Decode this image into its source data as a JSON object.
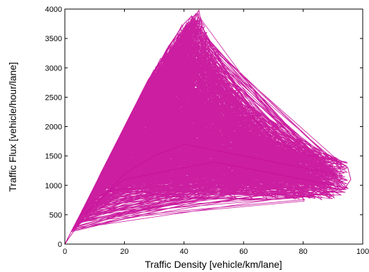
{
  "chart_data": {
    "type": "line",
    "title": "",
    "xlabel": "Traffic Density [vehicle/km/lane]",
    "ylabel": "Traffic Flux [vehicle/hour/lane]",
    "xlim": [
      0,
      100
    ],
    "ylim": [
      0,
      4000
    ],
    "x_ticks": [
      0,
      20,
      40,
      60,
      80,
      100
    ],
    "y_ticks": [
      0,
      500,
      1000,
      1500,
      2000,
      2500,
      3000,
      3500,
      4000
    ],
    "x_tick_labels": [
      "0",
      "20",
      "40",
      "60",
      "80",
      "100"
    ],
    "y_tick_labels": [
      "0",
      "500",
      "1000",
      "1500",
      "2000",
      "2500",
      "3000",
      "3500",
      "4000"
    ],
    "grid": false,
    "legend": "none",
    "series": [
      {
        "color": "#c8129b",
        "style": "dense zig-zag trajectory",
        "envelope": {
          "free_flow_upper": [
            [
              0,
              0
            ],
            [
              10,
              1000
            ],
            [
              20,
              2000
            ],
            [
              30,
              3000
            ],
            [
              40,
              3800
            ],
            [
              45,
              3980
            ]
          ],
          "free_flow_lower": [
            [
              0,
              0
            ],
            [
              5,
              450
            ],
            [
              10,
              800
            ],
            [
              15,
              900
            ],
            [
              20,
              1000
            ]
          ],
          "congested_upper": [
            [
              45,
              3980
            ],
            [
              50,
              3300
            ],
            [
              55,
              2900
            ],
            [
              60,
              2500
            ],
            [
              65,
              2000
            ],
            [
              70,
              1800
            ],
            [
              80,
              1600
            ],
            [
              90,
              1500
            ],
            [
              95,
              1400
            ]
          ],
          "congested_lower": [
            [
              20,
              1000
            ],
            [
              30,
              800
            ],
            [
              40,
              780
            ],
            [
              50,
              760
            ],
            [
              60,
              760
            ],
            [
              70,
              750
            ],
            [
              80,
              720
            ],
            [
              90,
              740
            ],
            [
              95,
              900
            ]
          ]
        },
        "sample_points": [
          [
            0,
            0
          ],
          [
            3,
            300
          ],
          [
            6,
            550
          ],
          [
            8,
            780
          ],
          [
            10,
            980
          ],
          [
            12,
            1200
          ],
          [
            14,
            1400
          ],
          [
            16,
            1600
          ],
          [
            18,
            1800
          ],
          [
            20,
            2000
          ],
          [
            22,
            2200
          ],
          [
            24,
            2400
          ],
          [
            26,
            2600
          ],
          [
            28,
            2800
          ],
          [
            30,
            2950
          ],
          [
            32,
            3100
          ],
          [
            34,
            3300
          ],
          [
            36,
            3450
          ],
          [
            38,
            3600
          ],
          [
            40,
            3750
          ],
          [
            42,
            3850
          ],
          [
            44,
            3900
          ],
          [
            45,
            3980
          ],
          [
            46,
            3700
          ],
          [
            48,
            3500
          ],
          [
            50,
            3300
          ],
          [
            52,
            3100
          ],
          [
            54,
            2950
          ],
          [
            56,
            2800
          ],
          [
            58,
            2650
          ],
          [
            60,
            2500
          ],
          [
            62,
            2300
          ],
          [
            64,
            2100
          ],
          [
            66,
            2000
          ],
          [
            68,
            1900
          ],
          [
            70,
            1800
          ],
          [
            72,
            1700
          ],
          [
            75,
            1650
          ],
          [
            78,
            1600
          ],
          [
            80,
            1550
          ],
          [
            83,
            1500
          ],
          [
            86,
            1480
          ],
          [
            89,
            1450
          ],
          [
            92,
            1400
          ],
          [
            95,
            1300
          ],
          [
            96,
            1100
          ],
          [
            94,
            950
          ],
          [
            90,
            900
          ],
          [
            85,
            850
          ],
          [
            80,
            800
          ],
          [
            75,
            780
          ],
          [
            70,
            760
          ],
          [
            65,
            760
          ],
          [
            60,
            760
          ],
          [
            55,
            780
          ],
          [
            50,
            780
          ],
          [
            45,
            790
          ],
          [
            40,
            800
          ],
          [
            35,
            820
          ],
          [
            30,
            860
          ],
          [
            25,
            900
          ],
          [
            20,
            950
          ],
          [
            15,
            900
          ],
          [
            12,
            820
          ],
          [
            10,
            760
          ],
          [
            8,
            680
          ],
          [
            6,
            560
          ],
          [
            5,
            480
          ],
          [
            10,
            640
          ],
          [
            20,
            1200
          ],
          [
            30,
            1500
          ],
          [
            40,
            1700
          ],
          [
            50,
            1600
          ],
          [
            60,
            1500
          ],
          [
            70,
            1400
          ],
          [
            80,
            1300
          ],
          [
            90,
            1200
          ],
          [
            95,
            950
          ],
          [
            80,
            1100
          ],
          [
            70,
            1200
          ],
          [
            60,
            1300
          ],
          [
            50,
            1400
          ],
          [
            40,
            1300
          ],
          [
            30,
            1200
          ],
          [
            20,
            1100
          ],
          [
            10,
            700
          ],
          [
            2,
            150
          ],
          [
            0,
            0
          ]
        ]
      }
    ]
  }
}
